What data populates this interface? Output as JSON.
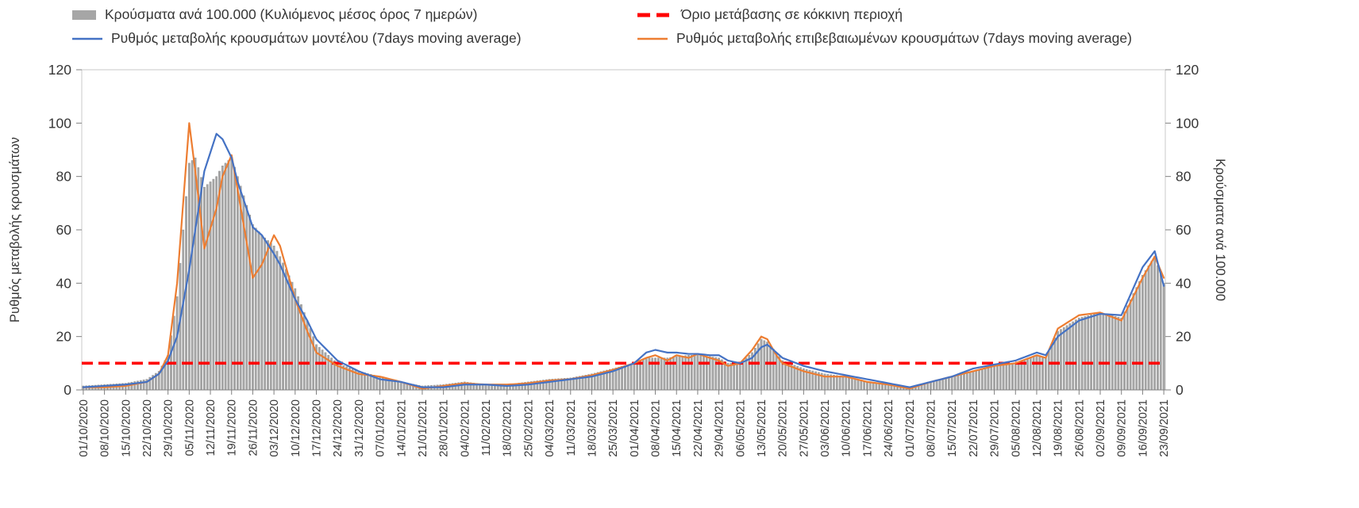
{
  "chart_data": {
    "type": "bar+line",
    "title": "",
    "colors": {
      "bars": "#a6a6a6",
      "bar_edge": "#8c8c8c",
      "model_line": "#4472c4",
      "confirmed_line": "#ed7d31",
      "threshold_line": "#ff0000",
      "axis_box": "#c9c9c9",
      "axis_line": "#808080",
      "text": "#363636"
    },
    "threshold": {
      "label": "Όριο μετάβασης σε κόκκινη περιοχή",
      "value": 10
    },
    "series": [
      {
        "key": "b",
        "name": "Κρούσματα ανά 100.000 (Κυλιόμενος μέσος όρος 7 ημερών)",
        "type": "bar"
      },
      {
        "key": "m",
        "name": "Ρυθμός μεταβολής κρουσμάτων μοντέλου (7days moving average)",
        "type": "line"
      },
      {
        "key": "c",
        "name": "Ρυθμός μεταβολής επιβεβαιωμένων κρουσμάτων (7days moving average)",
        "type": "line"
      }
    ],
    "y_axis_left": {
      "label": "Ρυθμός μεταβολής κρουσμάτων",
      "min": 0,
      "max": 120,
      "ticks": [
        0,
        20,
        40,
        60,
        80,
        100,
        120
      ]
    },
    "y_axis_right": {
      "label": "Κρούσματα ανά 100.000",
      "min": 0,
      "max": 120,
      "ticks": [
        0,
        20,
        40,
        60,
        80,
        100,
        120
      ]
    },
    "x_axis": {
      "total_days": 358,
      "days_per_tick": 7,
      "tick_labels": [
        "01/10/2020",
        "08/10/2020",
        "15/10/2020",
        "22/10/2020",
        "29/10/2020",
        "05/11/2020",
        "12/11/2020",
        "19/11/2020",
        "26/11/2020",
        "03/12/2020",
        "10/12/2020",
        "17/12/2020",
        "24/12/2020",
        "31/12/2020",
        "07/01/2021",
        "14/01/2021",
        "21/01/2021",
        "28/01/2021",
        "04/02/2021",
        "11/02/2021",
        "18/02/2021",
        "25/02/2021",
        "04/03/2021",
        "11/03/2021",
        "18/03/2021",
        "25/03/2021",
        "01/04/2021",
        "08/04/2021",
        "15/04/2021",
        "22/04/2021",
        "29/04/2021",
        "06/05/2021",
        "13/05/2021",
        "20/05/2021",
        "27/05/2021",
        "03/06/2021",
        "10/06/2021",
        "17/06/2021",
        "24/06/2021",
        "01/07/2021",
        "08/07/2021",
        "15/07/2021",
        "22/07/2021",
        "29/07/2021",
        "05/08/2021",
        "12/08/2021",
        "19/08/2021",
        "26/08/2021",
        "02/09/2021",
        "09/09/2021",
        "16/09/2021",
        "23/09/2021"
      ]
    },
    "anchors": [
      {
        "d": 0,
        "b": 1.5,
        "m": 1,
        "c": 1
      },
      {
        "d": 7,
        "b": 2,
        "m": 1.5,
        "c": 1
      },
      {
        "d": 14,
        "b": 2.5,
        "m": 2,
        "c": 1.5
      },
      {
        "d": 21,
        "b": 4,
        "m": 3,
        "c": 3
      },
      {
        "d": 25,
        "b": 7,
        "m": 6,
        "c": 6
      },
      {
        "d": 28,
        "b": 13,
        "m": 11,
        "c": 13
      },
      {
        "d": 31,
        "b": 35,
        "m": 20,
        "c": 40
      },
      {
        "d": 35,
        "b": 85,
        "m": 45,
        "c": 100
      },
      {
        "d": 37,
        "b": 87,
        "m": 60,
        "c": 82
      },
      {
        "d": 40,
        "b": 76,
        "m": 82,
        "c": 53
      },
      {
        "d": 44,
        "b": 80,
        "m": 96,
        "c": 68
      },
      {
        "d": 46,
        "b": 84,
        "m": 94,
        "c": 80
      },
      {
        "d": 49,
        "b": 87,
        "m": 87,
        "c": 88
      },
      {
        "d": 51,
        "b": 80,
        "m": 78,
        "c": 75
      },
      {
        "d": 56,
        "b": 62,
        "m": 61,
        "c": 42
      },
      {
        "d": 59,
        "b": 58,
        "m": 58,
        "c": 47
      },
      {
        "d": 63,
        "b": 54,
        "m": 51,
        "c": 58
      },
      {
        "d": 65,
        "b": 50,
        "m": 47,
        "c": 54
      },
      {
        "d": 70,
        "b": 38,
        "m": 34,
        "c": 34
      },
      {
        "d": 74,
        "b": 26,
        "m": 26,
        "c": 22
      },
      {
        "d": 77,
        "b": 17,
        "m": 19,
        "c": 14
      },
      {
        "d": 84,
        "b": 10,
        "m": 11,
        "c": 9
      },
      {
        "d": 91,
        "b": 7,
        "m": 7,
        "c": 6
      },
      {
        "d": 98,
        "b": 5,
        "m": 4,
        "c": 5
      },
      {
        "d": 105,
        "b": 3,
        "m": 3,
        "c": 3
      },
      {
        "d": 112,
        "b": 1.5,
        "m": 1,
        "c": 0.5
      },
      {
        "d": 119,
        "b": 2,
        "m": 1,
        "c": 1.5
      },
      {
        "d": 126,
        "b": 3,
        "m": 2,
        "c": 2.5
      },
      {
        "d": 133,
        "b": 2,
        "m": 2,
        "c": 2
      },
      {
        "d": 140,
        "b": 2,
        "m": 1.5,
        "c": 2
      },
      {
        "d": 147,
        "b": 3,
        "m": 2,
        "c": 2.5
      },
      {
        "d": 154,
        "b": 4,
        "m": 3,
        "c": 3.5
      },
      {
        "d": 161,
        "b": 4.5,
        "m": 4,
        "c": 4
      },
      {
        "d": 168,
        "b": 6,
        "m": 5,
        "c": 5.5
      },
      {
        "d": 175,
        "b": 8,
        "m": 7,
        "c": 7.5
      },
      {
        "d": 182,
        "b": 10,
        "m": 10,
        "c": 10
      },
      {
        "d": 186,
        "b": 12,
        "m": 14,
        "c": 12
      },
      {
        "d": 189,
        "b": 12,
        "m": 15,
        "c": 13
      },
      {
        "d": 193,
        "b": 12,
        "m": 14,
        "c": 11
      },
      {
        "d": 196,
        "b": 12.5,
        "m": 14,
        "c": 13
      },
      {
        "d": 200,
        "b": 13,
        "m": 13.5,
        "c": 12
      },
      {
        "d": 203,
        "b": 13,
        "m": 13.5,
        "c": 13.5
      },
      {
        "d": 207,
        "b": 12.5,
        "m": 13,
        "c": 12
      },
      {
        "d": 210,
        "b": 12,
        "m": 13,
        "c": 11
      },
      {
        "d": 213,
        "b": 10,
        "m": 11,
        "c": 9
      },
      {
        "d": 217,
        "b": 10,
        "m": 10,
        "c": 10
      },
      {
        "d": 221,
        "b": 14,
        "m": 12,
        "c": 15
      },
      {
        "d": 224,
        "b": 19,
        "m": 16,
        "c": 20
      },
      {
        "d": 226,
        "b": 18,
        "m": 17,
        "c": 19
      },
      {
        "d": 229,
        "b": 14,
        "m": 14,
        "c": 13
      },
      {
        "d": 231,
        "b": 11,
        "m": 12,
        "c": 10
      },
      {
        "d": 238,
        "b": 8,
        "m": 9,
        "c": 7
      },
      {
        "d": 245,
        "b": 6,
        "m": 7,
        "c": 5
      },
      {
        "d": 252,
        "b": 5,
        "m": 5.5,
        "c": 5
      },
      {
        "d": 259,
        "b": 3,
        "m": 4,
        "c": 3
      },
      {
        "d": 266,
        "b": 2,
        "m": 2.5,
        "c": 2
      },
      {
        "d": 273,
        "b": 1,
        "m": 1,
        "c": 0.5
      },
      {
        "d": 280,
        "b": 3,
        "m": 3,
        "c": 3
      },
      {
        "d": 287,
        "b": 5,
        "m": 5,
        "c": 5
      },
      {
        "d": 294,
        "b": 7,
        "m": 8,
        "c": 7
      },
      {
        "d": 301,
        "b": 9,
        "m": 9.5,
        "c": 9
      },
      {
        "d": 308,
        "b": 10,
        "m": 11,
        "c": 10
      },
      {
        "d": 315,
        "b": 13,
        "m": 14,
        "c": 13
      },
      {
        "d": 318,
        "b": 12,
        "m": 13,
        "c": 12
      },
      {
        "d": 322,
        "b": 22,
        "m": 20,
        "c": 23
      },
      {
        "d": 329,
        "b": 27,
        "m": 26,
        "c": 28
      },
      {
        "d": 336,
        "b": 29,
        "m": 28.5,
        "c": 29
      },
      {
        "d": 343,
        "b": 27,
        "m": 28,
        "c": 26
      },
      {
        "d": 350,
        "b": 43,
        "m": 46,
        "c": 42
      },
      {
        "d": 354,
        "b": 50,
        "m": 52,
        "c": 50
      },
      {
        "d": 357,
        "b": 40,
        "m": 39,
        "c": 42
      }
    ]
  }
}
